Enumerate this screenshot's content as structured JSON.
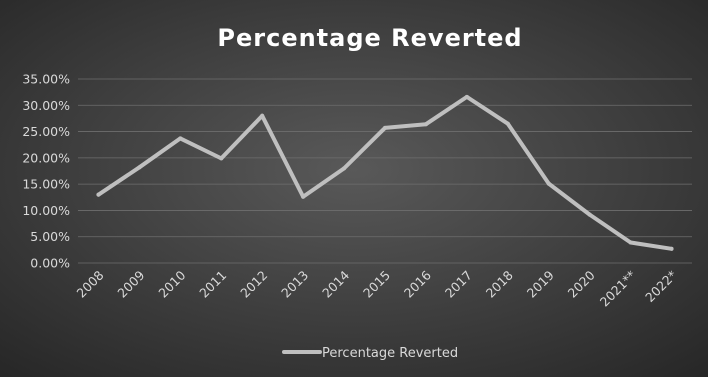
{
  "chart_data": {
    "type": "line",
    "title": "Percentage Reverted",
    "categories": [
      "2008",
      "2009",
      "2010",
      "2011",
      "2012",
      "2013",
      "2014",
      "2015",
      "2016",
      "2017",
      "2018",
      "2019",
      "2020",
      "2021**",
      "2022*"
    ],
    "series": [
      {
        "name": "Percentage Reverted",
        "values": [
          13.0,
          18.2,
          23.7,
          19.9,
          28.0,
          12.6,
          18.0,
          25.7,
          26.4,
          31.6,
          26.5,
          15.1,
          9.2,
          3.9,
          2.7
        ],
        "color": "#bfbfbf"
      }
    ],
    "ylim": [
      0,
      35
    ],
    "yticks": [
      0,
      5,
      10,
      15,
      20,
      25,
      30,
      35
    ],
    "ytick_labels": [
      "0.00%",
      "5.00%",
      "10.00%",
      "15.00%",
      "20.00%",
      "25.00%",
      "30.00%",
      "35.00%"
    ],
    "grid": true,
    "legend": "bottom",
    "background": [
      "#595959",
      "#262626"
    ]
  }
}
